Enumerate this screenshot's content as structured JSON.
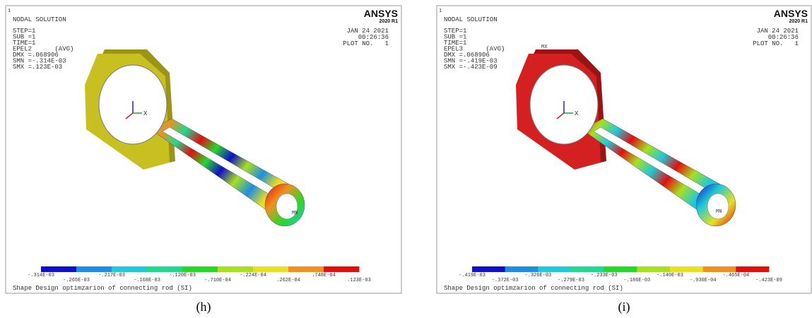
{
  "panels": [
    {
      "corner_number": "1",
      "title": "NODAL SOLUTION",
      "info": [
        "STEP=1",
        "SUB =1",
        "TIME=1",
        "EPEL2      (AVG)",
        "DMX =.068906",
        "SMN =-.314E-03",
        "SMX =.123E-03"
      ],
      "brand": "ANSYS",
      "version": "2020 R1",
      "date": "JAN 24 2021",
      "time": "00:26:36",
      "plot_no": "PLOT NO.   1",
      "axis_label": "X",
      "markers": [
        "MN"
      ],
      "legend_labels": [
        "-.314E-03",
        "-.265E-03",
        "-.217E-03",
        "-.168E-03",
        "-.120E-03",
        "-.710E-04",
        "-.224E-04",
        ".262E-04",
        ".748E-04",
        ".123E-03"
      ],
      "legend_colors": [
        "#1010c8",
        "#1e8ee0",
        "#20c8d8",
        "#20d890",
        "#28d828",
        "#a8e020",
        "#e8e020",
        "#f09020",
        "#e01010"
      ],
      "footer": "Shape Design optimzarion of connecting rod (SI)",
      "caption": "(h)"
    },
    {
      "corner_number": "1",
      "title": "NODAL SOLUTION",
      "info": [
        "STEP=1",
        "SUB =1",
        "TIME=1",
        "EPEL3      (AVG)",
        "DMX =.068906",
        "SMN =-.419E-03",
        "SMX =-.423E-09"
      ],
      "brand": "ANSYS",
      "version": "2020 R1",
      "date": "JAN 24 2021",
      "time": "00:26:36",
      "plot_no": "PLOT NO.   1",
      "axis_label": "X",
      "markers": [
        "MX",
        "MN"
      ],
      "legend_labels": [
        "-.419E-03",
        "-.372E-03",
        "-.326E-03",
        "-.279E-03",
        "-.233E-03",
        "-.186E-03",
        "-.140E-03",
        "-.930E-04",
        "-.465E-04",
        "-.423E-09"
      ],
      "legend_colors": [
        "#1010c8",
        "#1e8ee0",
        "#20c8d8",
        "#20d890",
        "#28d828",
        "#a8e020",
        "#e8e020",
        "#f09020",
        "#e01010"
      ],
      "footer": "Shape Design optimzarion of connecting rod (SI)",
      "caption": "(i)"
    }
  ]
}
